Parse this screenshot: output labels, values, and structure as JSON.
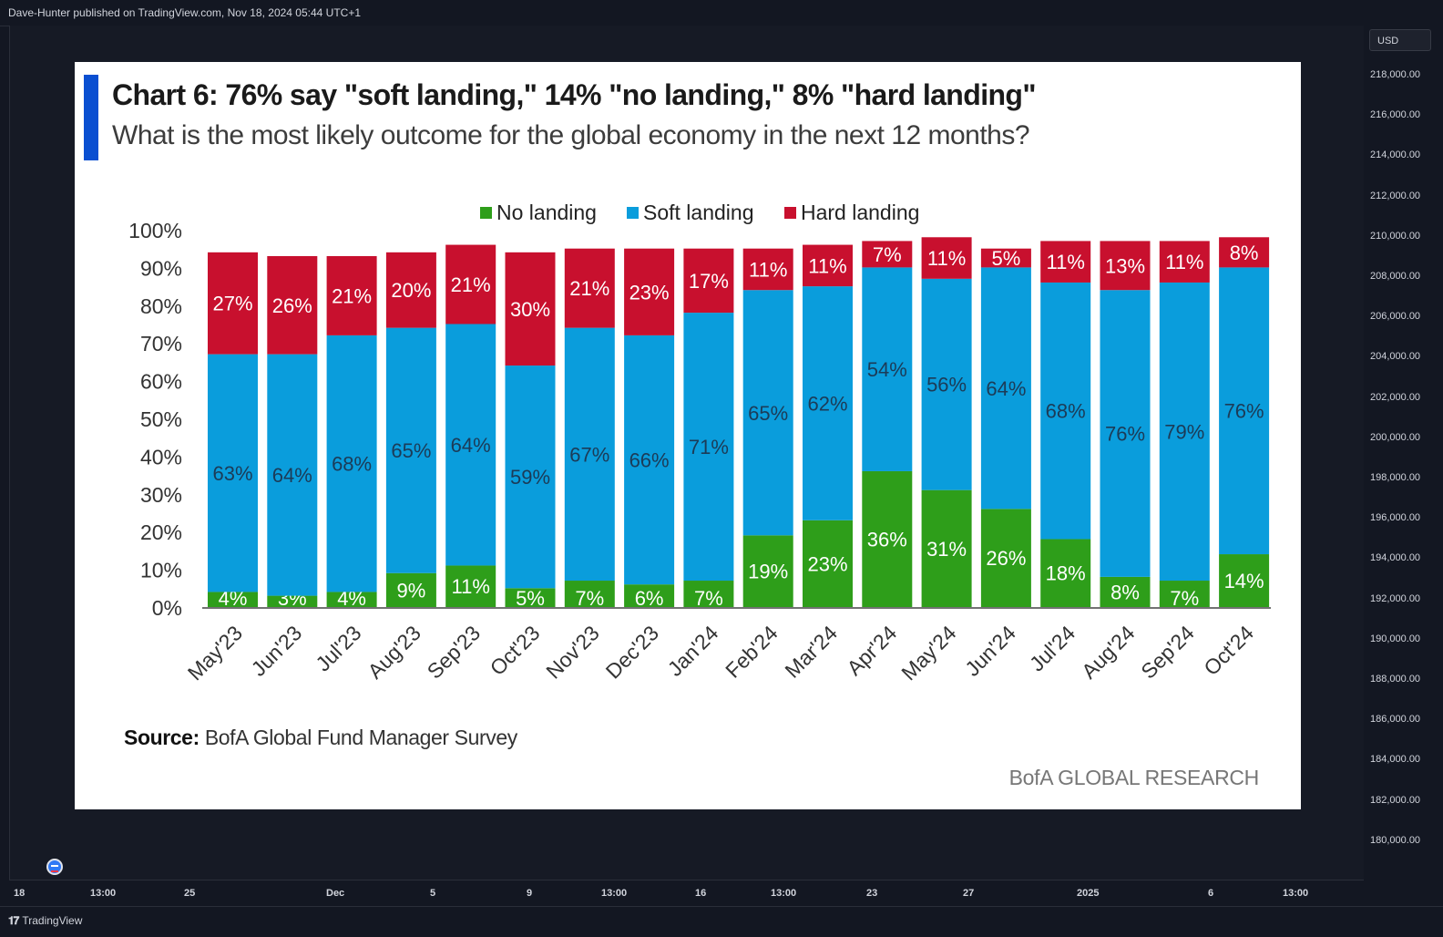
{
  "header": {
    "published": "Dave-Hunter published on TradingView.com, Nov 18, 2024 05:44 UTC+1"
  },
  "price_axis": {
    "currency": "USD",
    "labels": [
      "218,000.00",
      "216,000.00",
      "214,000.00",
      "212,000.00",
      "210,000.00",
      "208,000.00",
      "206,000.00",
      "204,000.00",
      "202,000.00",
      "200,000.00",
      "198,000.00",
      "196,000.00",
      "194,000.00",
      "192,000.00",
      "190,000.00",
      "188,000.00",
      "186,000.00",
      "184,000.00",
      "182,000.00",
      "180,000.00"
    ]
  },
  "time_axis": {
    "labels": [
      "18",
      "13:00",
      "25",
      "Dec",
      "5",
      "9",
      "13:00",
      "16",
      "13:00",
      "23",
      "27",
      "2025",
      "6",
      "13:00"
    ]
  },
  "footer": {
    "brand": "TradingView"
  },
  "panel": {
    "title": "Chart 6: 76% say \"soft landing,\" 14% \"no landing,\" 8% \"hard landing\"",
    "subtitle": "What is the most likely outcome for the global economy in the next 12 months?",
    "source_label": "Source:",
    "source_text": " BofA Global Fund Manager Survey",
    "brand": "BofA GLOBAL RESEARCH"
  },
  "chart_data": {
    "type": "bar",
    "stacked": true,
    "categories": [
      "May'23",
      "Jun'23",
      "Jul'23",
      "Aug'23",
      "Sep'23",
      "Oct'23",
      "Nov'23",
      "Dec'23",
      "Jan'24",
      "Feb'24",
      "Mar'24",
      "Apr'24",
      "May'24",
      "Jun'24",
      "Jul'24",
      "Aug'24",
      "Sep'24",
      "Oct'24"
    ],
    "series": [
      {
        "name": "No landing",
        "color": "#2e9e1a",
        "values": [
          4,
          3,
          4,
          9,
          11,
          5,
          7,
          6,
          7,
          19,
          23,
          36,
          31,
          26,
          18,
          8,
          7,
          14
        ]
      },
      {
        "name": "Soft landing",
        "color": "#0a9ddc",
        "values": [
          63,
          64,
          68,
          65,
          64,
          59,
          67,
          66,
          71,
          65,
          62,
          54,
          56,
          64,
          68,
          76,
          79,
          76
        ]
      },
      {
        "name": "Hard landing",
        "color": "#c8102e",
        "values": [
          27,
          26,
          21,
          20,
          21,
          30,
          21,
          23,
          17,
          11,
          11,
          7,
          11,
          5,
          11,
          13,
          11,
          8
        ]
      }
    ],
    "y_ticks": [
      "0%",
      "10%",
      "20%",
      "30%",
      "40%",
      "50%",
      "60%",
      "70%",
      "80%",
      "90%",
      "100%"
    ],
    "ylim": [
      0,
      100
    ],
    "legend_position": "top-center",
    "grid": false
  }
}
